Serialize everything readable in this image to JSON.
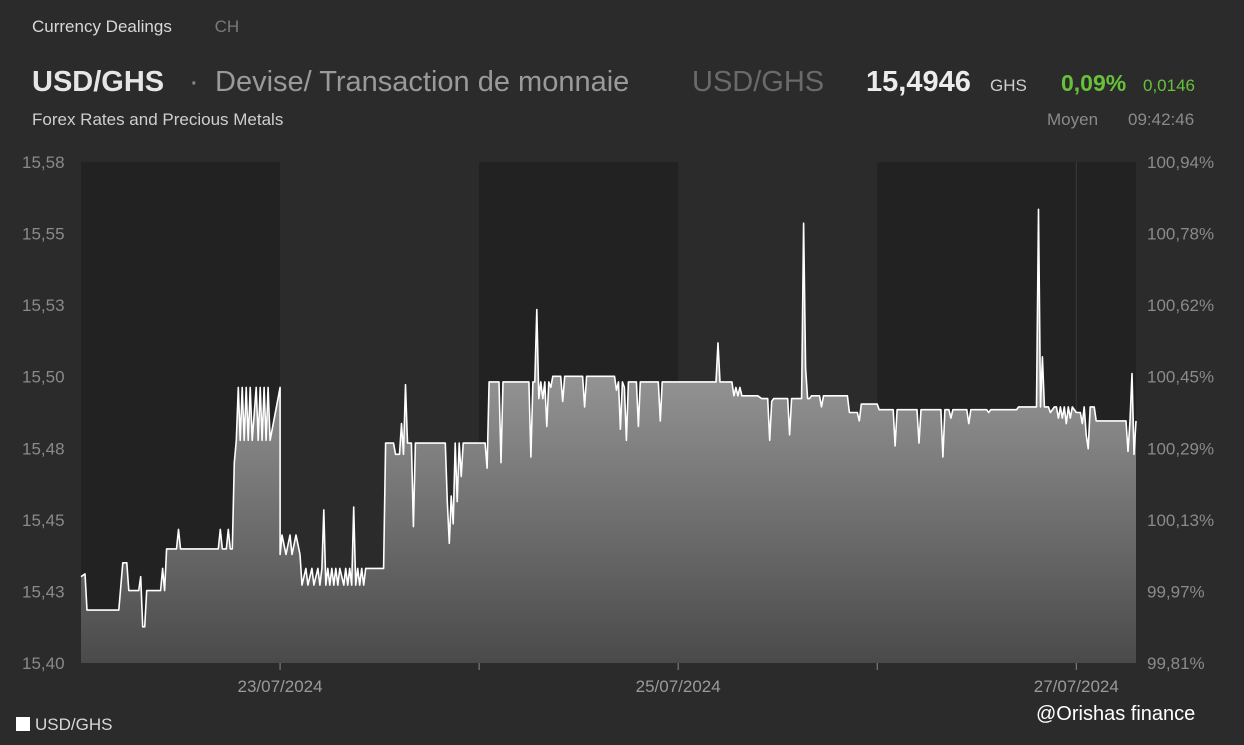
{
  "tabs": [
    "Currency Dealings",
    "CH"
  ],
  "header": {
    "symbol": "USD/GHS",
    "separator": "·",
    "description": "Devise/ Transaction de monnaie",
    "symbol_repeat": "USD/GHS",
    "price": "15,4946",
    "currency": "GHS",
    "change_pct": "0,09%",
    "change_abs": "0,0146",
    "subtitle": "Forex Rates and Precious Metals",
    "price_type": "Moyen",
    "time": "09:42:46"
  },
  "legend_label": "USD/GHS",
  "credit": "@Orishas finance",
  "colors": {
    "background": "#2b2b2b",
    "shade": "#222222",
    "line": "#ffffff",
    "positive": "#67c23a"
  },
  "chart_data": {
    "type": "area",
    "title": "",
    "xlabel": "",
    "ylabel": "",
    "ylim": [
      15.4,
      15.58
    ],
    "y_ticks_left": [
      "15,58",
      "15,55",
      "15,53",
      "15,50",
      "15,48",
      "15,45",
      "15,43",
      "15,40"
    ],
    "y_ticks_right": [
      "100,94%",
      "100,78%",
      "100,62%",
      "100,45%",
      "100,29%",
      "100,13%",
      "99,97%",
      "99,81%"
    ],
    "x_ticks": [
      {
        "label": "23/07/2024",
        "t": 1.0
      },
      {
        "label": "25/07/2024",
        "t": 3.0
      },
      {
        "label": "27/07/2024",
        "t": 5.0
      }
    ],
    "x_range_days": [
      0.0,
      5.3
    ],
    "shaded_day_ranges": [
      [
        0.0,
        1.0
      ],
      [
        2.0,
        3.0
      ],
      [
        4.0,
        5.3
      ]
    ],
    "grid": false,
    "legend_position": "bottom-left",
    "series": [
      {
        "name": "USD/GHS",
        "points": [
          [
            0.0,
            15.431
          ],
          [
            0.02,
            15.432
          ],
          [
            0.03,
            15.419
          ],
          [
            0.19,
            15.419
          ],
          [
            0.21,
            15.436
          ],
          [
            0.23,
            15.436
          ],
          [
            0.24,
            15.426
          ],
          [
            0.29,
            15.426
          ],
          [
            0.3,
            15.431
          ],
          [
            0.31,
            15.413
          ],
          [
            0.32,
            15.413
          ],
          [
            0.33,
            15.426
          ],
          [
            0.4,
            15.426
          ],
          [
            0.41,
            15.434
          ],
          [
            0.42,
            15.426
          ],
          [
            0.43,
            15.441
          ],
          [
            0.48,
            15.441
          ],
          [
            0.49,
            15.448
          ],
          [
            0.5,
            15.441
          ],
          [
            0.69,
            15.441
          ],
          [
            0.7,
            15.448
          ],
          [
            0.71,
            15.441
          ],
          [
            0.73,
            15.441
          ],
          [
            0.74,
            15.448
          ],
          [
            0.75,
            15.441
          ],
          [
            0.76,
            15.441
          ],
          [
            0.77,
            15.472
          ],
          [
            0.78,
            15.48
          ],
          [
            0.79,
            15.499
          ],
          [
            0.8,
            15.48
          ],
          [
            0.81,
            15.499
          ],
          [
            0.82,
            15.48
          ],
          [
            0.83,
            15.499
          ],
          [
            0.84,
            15.48
          ],
          [
            0.85,
            15.499
          ],
          [
            0.86,
            15.48
          ],
          [
            0.88,
            15.499
          ],
          [
            0.89,
            15.48
          ],
          [
            0.9,
            15.499
          ],
          [
            0.91,
            15.48
          ],
          [
            0.92,
            15.499
          ],
          [
            0.93,
            15.48
          ],
          [
            0.94,
            15.499
          ],
          [
            0.95,
            15.48
          ],
          [
            1.0,
            15.499
          ],
          [
            1.0,
            15.439
          ],
          [
            1.01,
            15.446
          ],
          [
            1.03,
            15.439
          ],
          [
            1.05,
            15.446
          ],
          [
            1.06,
            15.439
          ],
          [
            1.08,
            15.446
          ],
          [
            1.1,
            15.439
          ],
          [
            1.11,
            15.428
          ],
          [
            1.13,
            15.434
          ],
          [
            1.14,
            15.428
          ],
          [
            1.16,
            15.434
          ],
          [
            1.17,
            15.428
          ],
          [
            1.19,
            15.434
          ],
          [
            1.2,
            15.428
          ],
          [
            1.21,
            15.434
          ],
          [
            1.22,
            15.455
          ],
          [
            1.23,
            15.428
          ],
          [
            1.24,
            15.434
          ],
          [
            1.25,
            15.428
          ],
          [
            1.26,
            15.434
          ],
          [
            1.27,
            15.428
          ],
          [
            1.28,
            15.434
          ],
          [
            1.29,
            15.428
          ],
          [
            1.3,
            15.434
          ],
          [
            1.32,
            15.428
          ],
          [
            1.33,
            15.434
          ],
          [
            1.34,
            15.428
          ],
          [
            1.35,
            15.434
          ],
          [
            1.36,
            15.428
          ],
          [
            1.37,
            15.456
          ],
          [
            1.38,
            15.428
          ],
          [
            1.39,
            15.434
          ],
          [
            1.4,
            15.428
          ],
          [
            1.41,
            15.434
          ],
          [
            1.42,
            15.428
          ],
          [
            1.43,
            15.434
          ],
          [
            1.45,
            15.434
          ],
          [
            1.52,
            15.434
          ],
          [
            1.53,
            15.479
          ],
          [
            1.57,
            15.479
          ],
          [
            1.58,
            15.475
          ],
          [
            1.6,
            15.475
          ],
          [
            1.61,
            15.486
          ],
          [
            1.62,
            15.475
          ],
          [
            1.63,
            15.5
          ],
          [
            1.64,
            15.479
          ],
          [
            1.66,
            15.479
          ],
          [
            1.67,
            15.449
          ],
          [
            1.68,
            15.479
          ],
          [
            1.83,
            15.479
          ],
          [
            1.84,
            15.458
          ],
          [
            1.85,
            15.443
          ],
          [
            1.86,
            15.46
          ],
          [
            1.87,
            15.45
          ],
          [
            1.88,
            15.479
          ],
          [
            1.89,
            15.458
          ],
          [
            1.9,
            15.479
          ],
          [
            1.91,
            15.467
          ],
          [
            1.92,
            15.479
          ],
          [
            2.0,
            15.479
          ],
          [
            2.03,
            15.479
          ],
          [
            2.04,
            15.47
          ],
          [
            2.05,
            15.501
          ],
          [
            2.1,
            15.501
          ],
          [
            2.11,
            15.472
          ],
          [
            2.12,
            15.501
          ],
          [
            2.25,
            15.501
          ],
          [
            2.26,
            15.474
          ],
          [
            2.27,
            15.501
          ],
          [
            2.28,
            15.501
          ],
          [
            2.29,
            15.527
          ],
          [
            2.3,
            15.495
          ],
          [
            2.31,
            15.501
          ],
          [
            2.32,
            15.495
          ],
          [
            2.33,
            15.501
          ],
          [
            2.34,
            15.485
          ],
          [
            2.35,
            15.501
          ],
          [
            2.36,
            15.499
          ],
          [
            2.37,
            15.503
          ],
          [
            2.38,
            15.503
          ],
          [
            2.41,
            15.503
          ],
          [
            2.42,
            15.494
          ],
          [
            2.43,
            15.503
          ],
          [
            2.52,
            15.503
          ],
          [
            2.53,
            15.492
          ],
          [
            2.54,
            15.503
          ],
          [
            2.68,
            15.503
          ],
          [
            2.69,
            15.498
          ],
          [
            2.7,
            15.501
          ],
          [
            2.71,
            15.484
          ],
          [
            2.72,
            15.501
          ],
          [
            2.73,
            15.499
          ],
          [
            2.74,
            15.48
          ],
          [
            2.75,
            15.501
          ],
          [
            2.79,
            15.501
          ],
          [
            2.8,
            15.485
          ],
          [
            2.81,
            15.501
          ],
          [
            2.9,
            15.501
          ],
          [
            2.91,
            15.487
          ],
          [
            2.92,
            15.501
          ],
          [
            3.0,
            15.501
          ],
          [
            3.19,
            15.501
          ],
          [
            3.2,
            15.515
          ],
          [
            3.21,
            15.501
          ],
          [
            3.27,
            15.501
          ],
          [
            3.28,
            15.496
          ],
          [
            3.29,
            15.499
          ],
          [
            3.3,
            15.496
          ],
          [
            3.31,
            15.499
          ],
          [
            3.32,
            15.496
          ],
          [
            3.37,
            15.496
          ],
          [
            3.4,
            15.496
          ],
          [
            3.42,
            15.495
          ],
          [
            3.45,
            15.495
          ],
          [
            3.46,
            15.48
          ],
          [
            3.47,
            15.494
          ],
          [
            3.48,
            15.495
          ],
          [
            3.55,
            15.495
          ],
          [
            3.56,
            15.482
          ],
          [
            3.57,
            15.495
          ],
          [
            3.62,
            15.495
          ],
          [
            3.63,
            15.558
          ],
          [
            3.64,
            15.506
          ],
          [
            3.65,
            15.495
          ],
          [
            3.66,
            15.495
          ],
          [
            3.67,
            15.496
          ],
          [
            3.68,
            15.496
          ],
          [
            3.71,
            15.496
          ],
          [
            3.72,
            15.492
          ],
          [
            3.73,
            15.496
          ],
          [
            3.85,
            15.496
          ],
          [
            3.86,
            15.49
          ],
          [
            3.87,
            15.49
          ],
          [
            3.9,
            15.49
          ],
          [
            3.91,
            15.487
          ],
          [
            3.92,
            15.493
          ],
          [
            4.0,
            15.493
          ],
          [
            4.01,
            15.491
          ],
          [
            4.02,
            15.491
          ],
          [
            4.08,
            15.491
          ],
          [
            4.09,
            15.478
          ],
          [
            4.1,
            15.491
          ],
          [
            4.2,
            15.491
          ],
          [
            4.21,
            15.479
          ],
          [
            4.22,
            15.491
          ],
          [
            4.32,
            15.491
          ],
          [
            4.33,
            15.474
          ],
          [
            4.34,
            15.491
          ],
          [
            4.36,
            15.491
          ],
          [
            4.37,
            15.488
          ],
          [
            4.38,
            15.491
          ],
          [
            4.45,
            15.491
          ],
          [
            4.46,
            15.486
          ],
          [
            4.47,
            15.491
          ],
          [
            4.55,
            15.491
          ],
          [
            4.56,
            15.49
          ],
          [
            4.57,
            15.491
          ],
          [
            4.6,
            15.491
          ],
          [
            4.61,
            15.491
          ],
          [
            4.62,
            15.491
          ],
          [
            4.7,
            15.491
          ],
          [
            4.71,
            15.492
          ],
          [
            4.72,
            15.492
          ],
          [
            4.8,
            15.492
          ],
          [
            4.81,
            15.563
          ],
          [
            4.82,
            15.492
          ],
          [
            4.83,
            15.51
          ],
          [
            4.84,
            15.492
          ],
          [
            4.86,
            15.492
          ],
          [
            4.87,
            15.49
          ],
          [
            4.89,
            15.492
          ],
          [
            4.9,
            15.492
          ],
          [
            4.91,
            15.488
          ],
          [
            4.92,
            15.492
          ],
          [
            4.93,
            15.488
          ],
          [
            4.94,
            15.492
          ],
          [
            4.95,
            15.486
          ],
          [
            4.96,
            15.492
          ],
          [
            4.97,
            15.488
          ],
          [
            4.98,
            15.492
          ],
          [
            5.0,
            15.49
          ],
          [
            5.01,
            15.49
          ],
          [
            5.02,
            15.49
          ],
          [
            5.03,
            15.486
          ],
          [
            5.04,
            15.492
          ],
          [
            5.05,
            15.482
          ],
          [
            5.06,
            15.477
          ],
          [
            5.07,
            15.492
          ],
          [
            5.08,
            15.492
          ],
          [
            5.09,
            15.492
          ],
          [
            5.1,
            15.487
          ],
          [
            5.15,
            15.487
          ],
          [
            5.2,
            15.487
          ],
          [
            5.25,
            15.487
          ],
          [
            5.26,
            15.476
          ],
          [
            5.27,
            15.487
          ],
          [
            5.28,
            15.504
          ],
          [
            5.29,
            15.475
          ],
          [
            5.3,
            15.487
          ]
        ]
      }
    ]
  }
}
